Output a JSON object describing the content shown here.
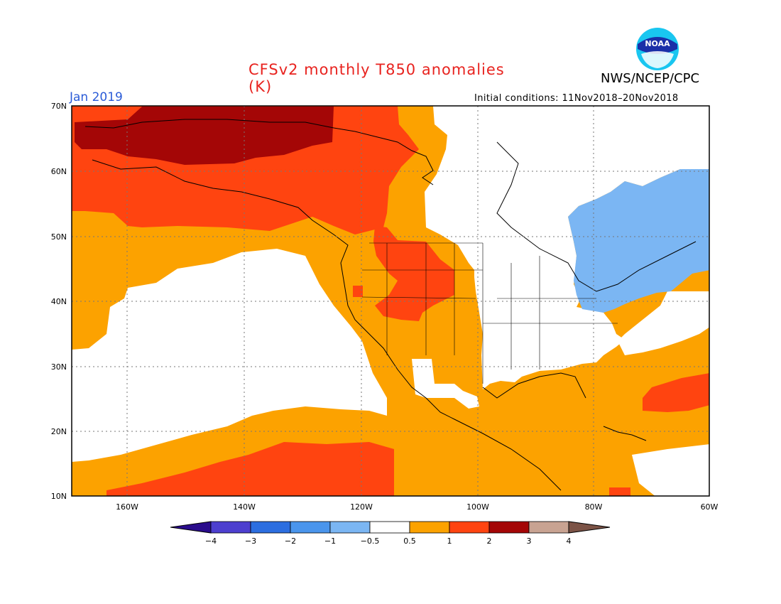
{
  "header": {
    "title": "CFSv2 monthly T850 anomalies (K)",
    "month": "Jan 2019",
    "agency": "NWS/NCEP/CPC",
    "initial_conditions": "Initial conditions: 11Nov2018–20Nov2018",
    "logo_text": "NOAA",
    "logo_icon": "noaa-logo-icon"
  },
  "axes": {
    "lat_labels": [
      "70N",
      "60N",
      "50N",
      "40N",
      "30N",
      "20N",
      "10N"
    ],
    "lon_labels": [
      "160W",
      "140W",
      "120W",
      "100W",
      "80W",
      "60W"
    ]
  },
  "legend": {
    "labels": [
      "-4",
      "-3",
      "-2",
      "-1",
      "-0.5",
      "0.5",
      "1",
      "2",
      "3",
      "4"
    ],
    "colors": [
      "#2a0c8c",
      "#4d3fcf",
      "#2c6ee0",
      "#4a95ec",
      "#7bb6f3",
      "#ffffff",
      "#fca200",
      "#ff4410",
      "#a40606",
      "#c8a392",
      "#7c5346"
    ]
  },
  "colors": {
    "warm_1": "#fca200",
    "warm_2": "#ff4410",
    "warm_3": "#a40606",
    "cool_1": "#7bb6f3",
    "neutral": "#ffffff"
  }
}
